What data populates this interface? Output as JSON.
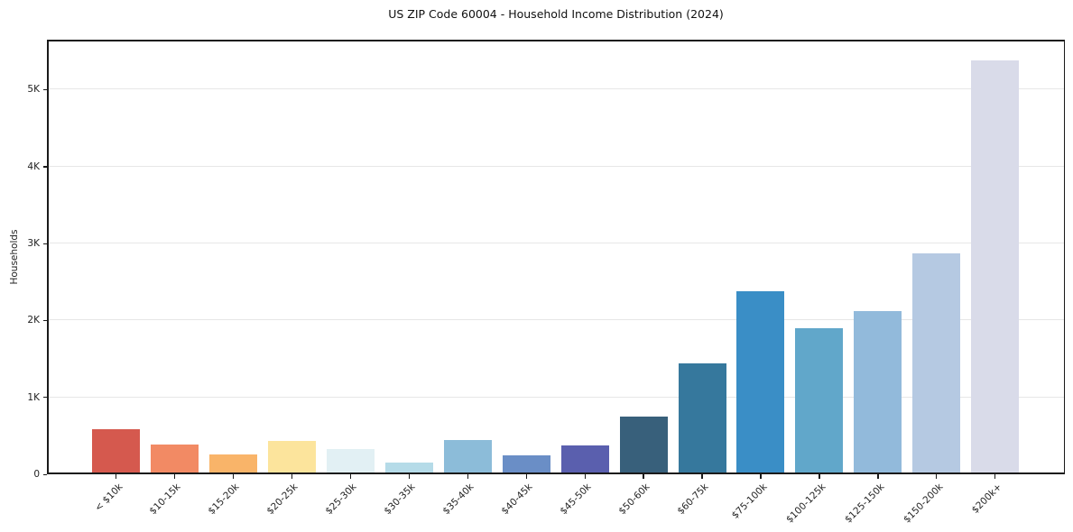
{
  "chart": {
    "title": "US ZIP Code 60004 - Household Income Distribution (2024)",
    "ylabel": "Households"
  },
  "chart_data": {
    "type": "bar",
    "title": "US ZIP Code 60004 - Household Income Distribution (2024)",
    "xlabel": "",
    "ylabel": "Households",
    "categories": [
      "< $10k",
      "$10-15k",
      "$15-20k",
      "$20-25k",
      "$25-30k",
      "$30-35k",
      "$35-40k",
      "$40-45k",
      "$45-50k",
      "$50-60k",
      "$60-75k",
      "$75-100k",
      "$100-125k",
      "$125-150k",
      "$150-200k",
      "$200k+"
    ],
    "values": [
      585,
      385,
      260,
      430,
      325,
      155,
      445,
      250,
      375,
      745,
      1440,
      2385,
      1900,
      2125,
      2875,
      5375
    ],
    "bar_colors": [
      "#d5594e",
      "#f28a64",
      "#f9b469",
      "#fce49c",
      "#e2f0f4",
      "#b5dbe8",
      "#8cbcd9",
      "#6a8ec6",
      "#5a5fae",
      "#38607b",
      "#36789d",
      "#3a8ec6",
      "#61a7ca",
      "#92badb",
      "#b5c9e2",
      "#d9dbe9"
    ],
    "yticks": [
      {
        "label": "0",
        "value": 0
      },
      {
        "label": "1K",
        "value": 1000
      },
      {
        "label": "2K",
        "value": 2000
      },
      {
        "label": "3K",
        "value": 3000
      },
      {
        "label": "4K",
        "value": 4000
      },
      {
        "label": "5K",
        "value": 5000
      }
    ],
    "ylim": [
      0,
      5650
    ],
    "grid": "horizontal-only",
    "legend": "none",
    "plot_background": "#ffffff",
    "spine_color": "#1a1a1a",
    "gridline_color": "#e7e7e7"
  }
}
